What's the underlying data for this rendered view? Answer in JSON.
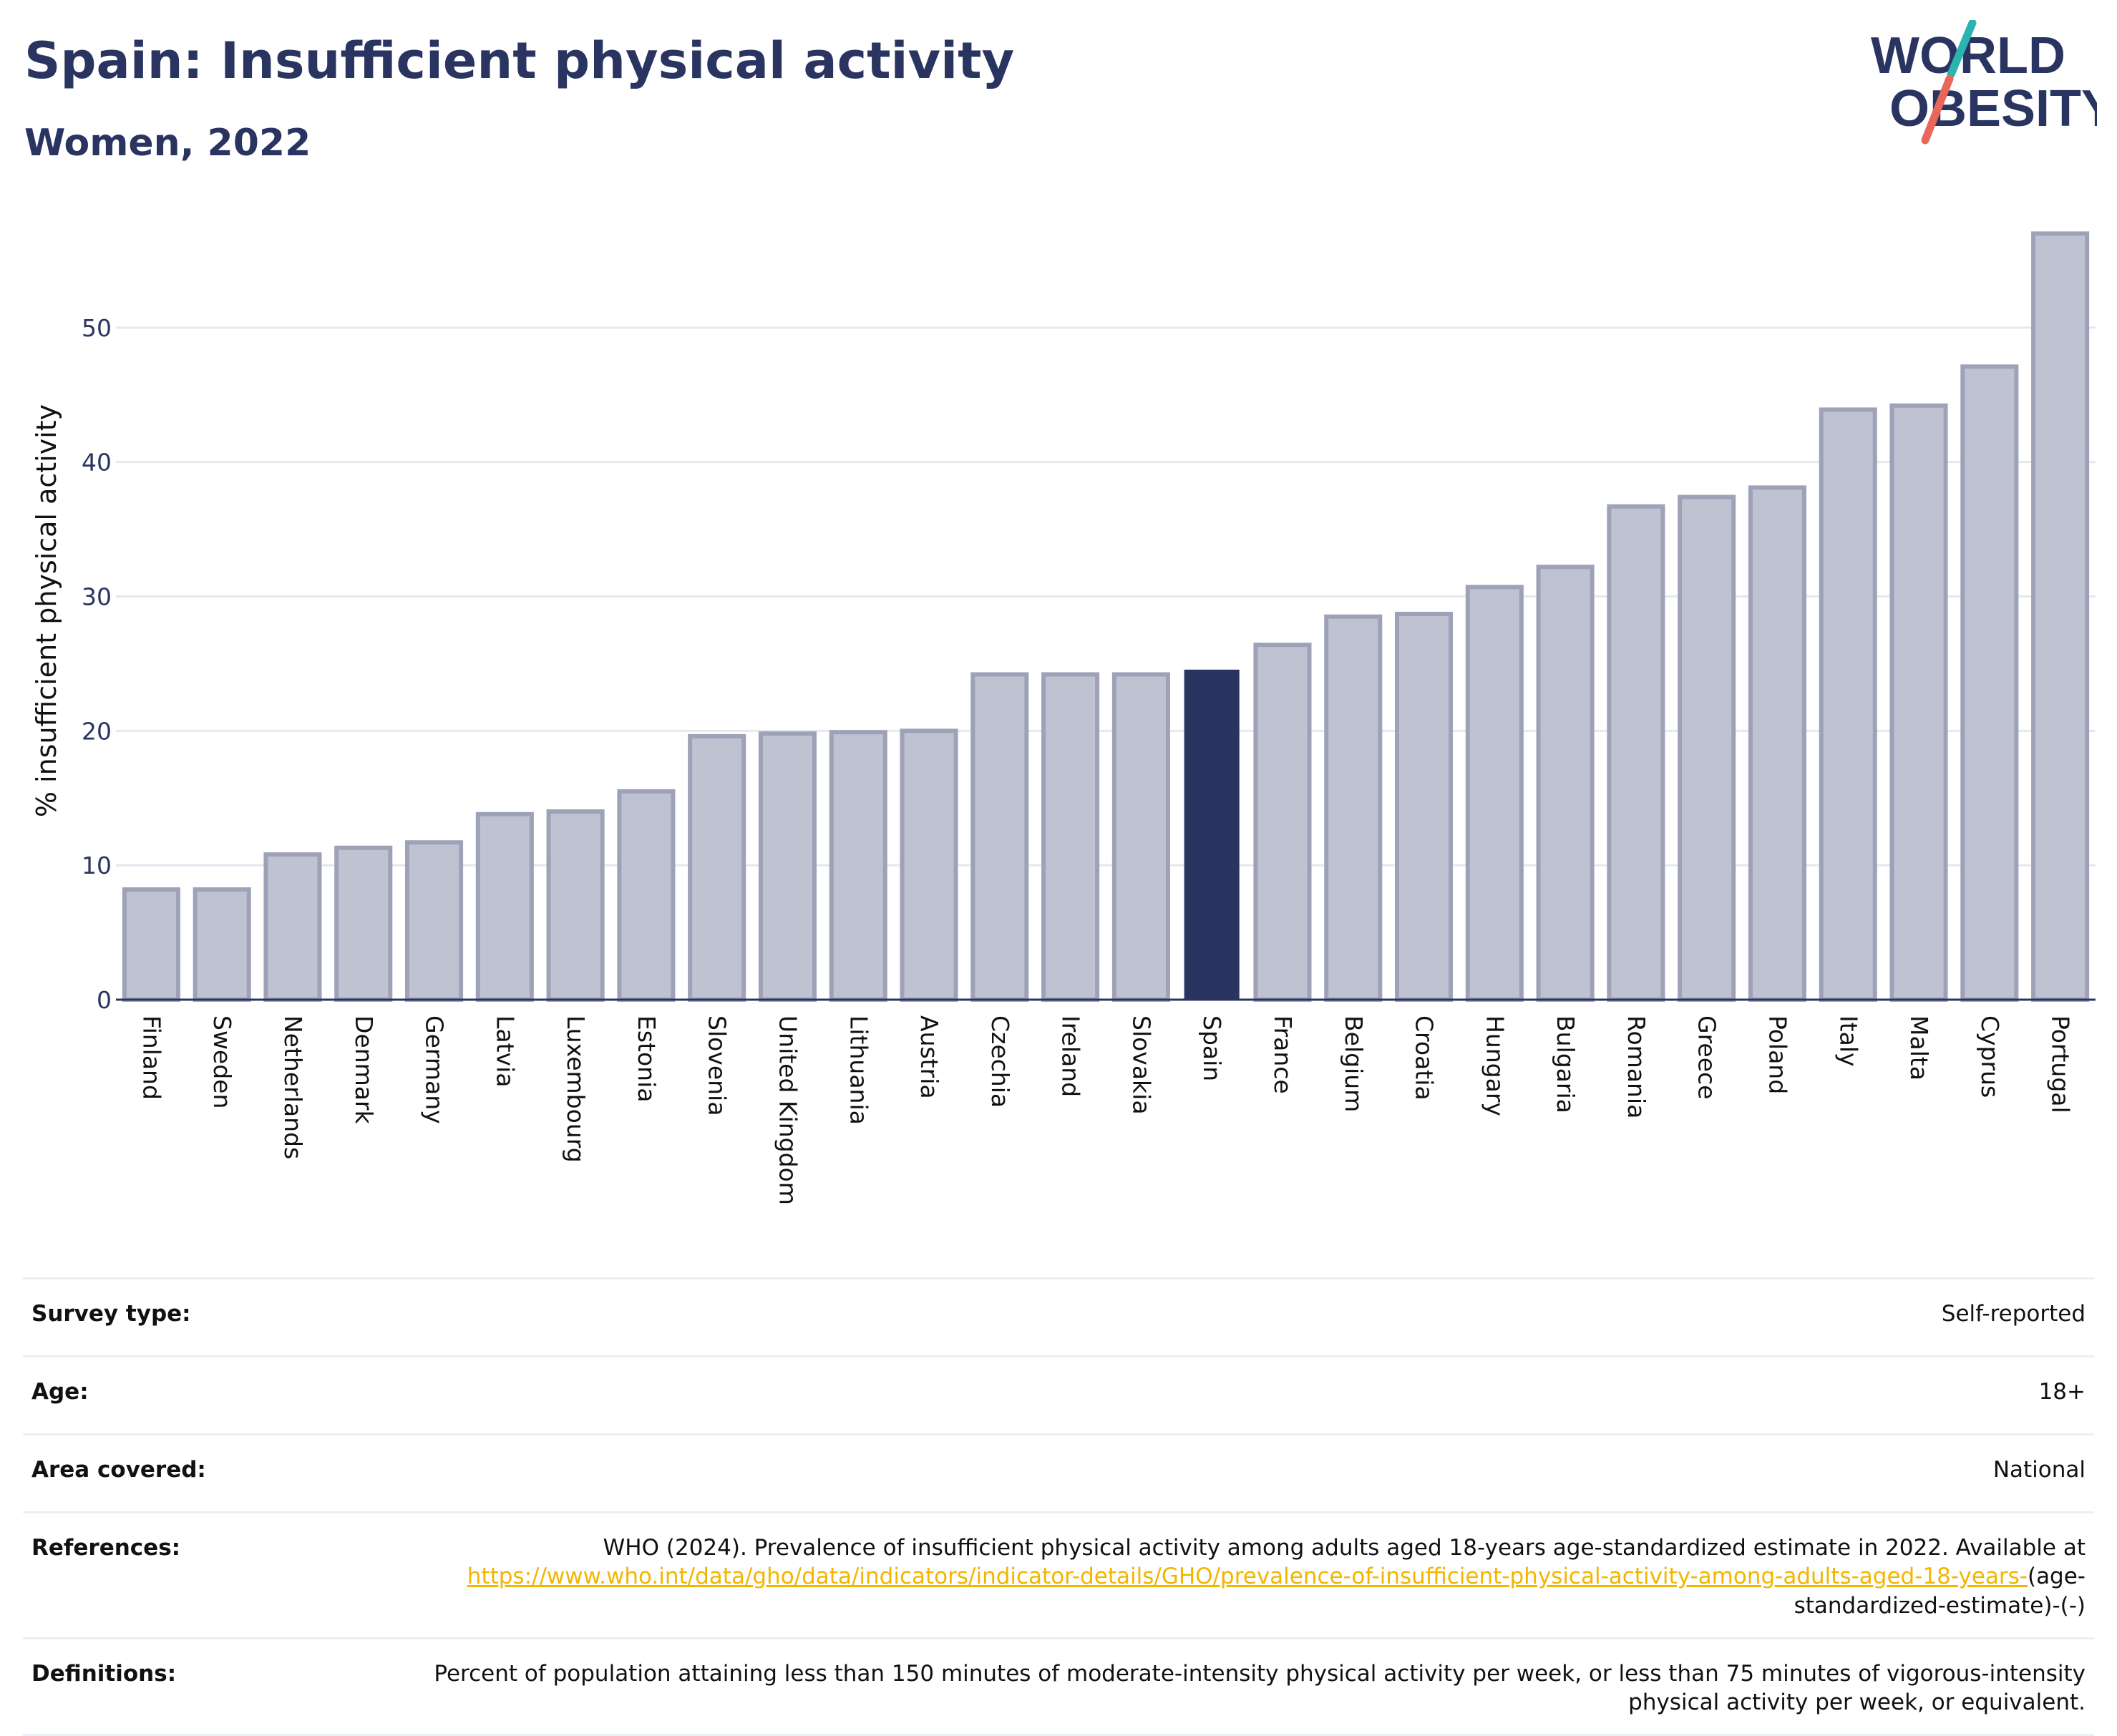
{
  "header": {
    "title": "Spain: Insufficient physical activity",
    "subtitle": "Women, 2022"
  },
  "logo": {
    "line1": "WORLD",
    "line2": "OBESITY",
    "color_text": "#2a3461",
    "color_slash_top": "#2bb3b1",
    "color_slash_bottom": "#e8665a"
  },
  "chart_data": {
    "type": "bar",
    "title": "Spain: Insufficient physical activity",
    "subtitle": "Women, 2022",
    "ylabel": "% insufficient physical activity",
    "xlabel": "",
    "ylim": [
      0,
      60
    ],
    "yticks": [
      0,
      10,
      20,
      30,
      40,
      50
    ],
    "grid": true,
    "highlight": "Spain",
    "colors": {
      "bar_fill": "#bfc2d0",
      "bar_stroke": "#9ea2b8",
      "highlight_fill": "#2a3461",
      "grid": "#e6e8f0",
      "axis": "#2a3461"
    },
    "categories": [
      "Finland",
      "Sweden",
      "Netherlands",
      "Denmark",
      "Germany",
      "Latvia",
      "Luxembourg",
      "Estonia",
      "Slovenia",
      "United Kingdom",
      "Lithuania",
      "Austria",
      "Czechia",
      "Ireland",
      "Slovakia",
      "Spain",
      "France",
      "Belgium",
      "Croatia",
      "Hungary",
      "Bulgaria",
      "Romania",
      "Greece",
      "Poland",
      "Italy",
      "Malta",
      "Cyprus",
      "Portugal"
    ],
    "values": [
      8.2,
      8.2,
      10.8,
      11.3,
      11.7,
      13.8,
      14.0,
      15.5,
      19.6,
      19.8,
      19.9,
      20.0,
      24.2,
      24.2,
      24.2,
      24.5,
      26.4,
      28.5,
      28.7,
      30.7,
      32.2,
      36.7,
      37.4,
      38.1,
      43.9,
      44.2,
      47.1,
      57.0
    ]
  },
  "details": {
    "survey_type_label": "Survey type:",
    "survey_type_value": "Self-reported",
    "age_label": "Age:",
    "age_value": "18+",
    "area_label": "Area covered:",
    "area_value": "National",
    "references_label": "References:",
    "references_text_1": "WHO (2024). Prevalence of insufficient physical activity among adults aged 18-years age-standardized estimate in 2022. Available at",
    "references_link": "https://www.who.int/data/gho/data/indicators/indicator-details/GHO/prevalence-of-insufficient-physical-activity-among-adults-aged-18-years-",
    "references_text_2": "(age-standardized-estimate)-(-)",
    "definitions_label": "Definitions:",
    "definitions_text": "Percent of population attaining less than 150 minutes of moderate-intensity physical activity per week, or less than 75 minutes of vigorous-intensity physical activity per week, or equivalent."
  }
}
